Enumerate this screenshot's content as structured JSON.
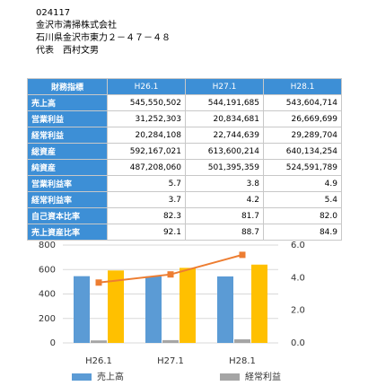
{
  "header": {
    "code": "024117",
    "company": "金沢市清掃株式会社",
    "address": "石川県金沢市東力２－４７－４８",
    "representative": "代表　西村文男"
  },
  "table": {
    "columns": [
      "財務指標",
      "H26.1",
      "H27.1",
      "H28.1"
    ],
    "rows": [
      [
        "売上高",
        "545,550,502",
        "544,191,685",
        "543,604,714"
      ],
      [
        "営業利益",
        "31,252,303",
        "20,834,681",
        "26,669,699"
      ],
      [
        "経常利益",
        "20,284,108",
        "22,744,639",
        "29,289,704"
      ],
      [
        "総資産",
        "592,167,021",
        "613,600,214",
        "640,134,254"
      ],
      [
        "純資産",
        "487,208,060",
        "501,395,359",
        "524,591,789"
      ],
      [
        "営業利益率",
        "5.7",
        "3.8",
        "4.9"
      ],
      [
        "経常利益率",
        "3.7",
        "4.2",
        "5.4"
      ],
      [
        "自己資本比率",
        "82.3",
        "81.7",
        "82.0"
      ],
      [
        "売上資産比率",
        "92.1",
        "88.7",
        "84.9"
      ]
    ]
  },
  "chart_data": {
    "type": "bar",
    "categories": [
      "H26.1",
      "H27.1",
      "H28.1"
    ],
    "series": [
      {
        "name": "売上高",
        "color": "#5b9bd5",
        "values": [
          545.6,
          544.2,
          543.6
        ]
      },
      {
        "name": "経常利益",
        "color": "#a5a5a5",
        "values": [
          20.3,
          22.7,
          29.3
        ]
      },
      {
        "color": "#ffc000",
        "values": [
          592.2,
          613.6,
          640.1
        ]
      },
      {
        "color": "#ed7d31",
        "values": [
          3.7,
          4.2,
          5.4
        ],
        "axis": "y2",
        "type": "line"
      }
    ],
    "ylim": [
      0,
      800
    ],
    "yticks": [
      0,
      200,
      400,
      600,
      800
    ],
    "y2lim": [
      0,
      6
    ],
    "y2ticks": [
      {
        "value": 0,
        "label": "0.0"
      },
      {
        "value": 2,
        "label": "2.0"
      },
      {
        "value": 4,
        "label": "4.0"
      },
      {
        "value": 6,
        "label": "6.0"
      }
    ],
    "grid": true
  }
}
